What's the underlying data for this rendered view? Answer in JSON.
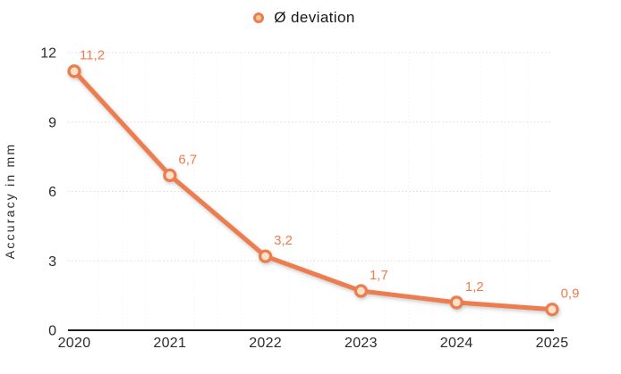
{
  "chart_data": {
    "type": "line",
    "title": "",
    "legend": {
      "label": "Ø deviation",
      "position": "top-center",
      "marker_center": "#F7C89C"
    },
    "categories": [
      "2020",
      "2021",
      "2022",
      "2023",
      "2024",
      "2025"
    ],
    "series": [
      {
        "name": "Ø deviation",
        "values": [
          11.2,
          6.7,
          3.2,
          1.7,
          1.2,
          0.9
        ],
        "point_labels": [
          "11,2",
          "6,7",
          "3,2",
          "1,7",
          "1,2",
          "0,9"
        ],
        "color": "#ED7C4E",
        "marker_fill": "#FBE3CA"
      }
    ],
    "xlabel": "",
    "ylabel": "Accuracy in mm",
    "ylim": [
      0,
      12
    ],
    "yticks": [
      0,
      3,
      6,
      9,
      12
    ],
    "grid": {
      "horizontal": "dotted",
      "vertical_minor": "faint-dotted-quarters",
      "baseline": "solid"
    },
    "colors": {
      "accent": "#ED7C4E",
      "data_label": "#ED7C4E",
      "marker_fill": "#FBE3CA",
      "grid": "#D6D6D6",
      "grid_minor": "#F2F2F2",
      "axis_line": "#1D1D1D",
      "text": "#2B2B2B",
      "background": "#FFFFFF"
    }
  }
}
